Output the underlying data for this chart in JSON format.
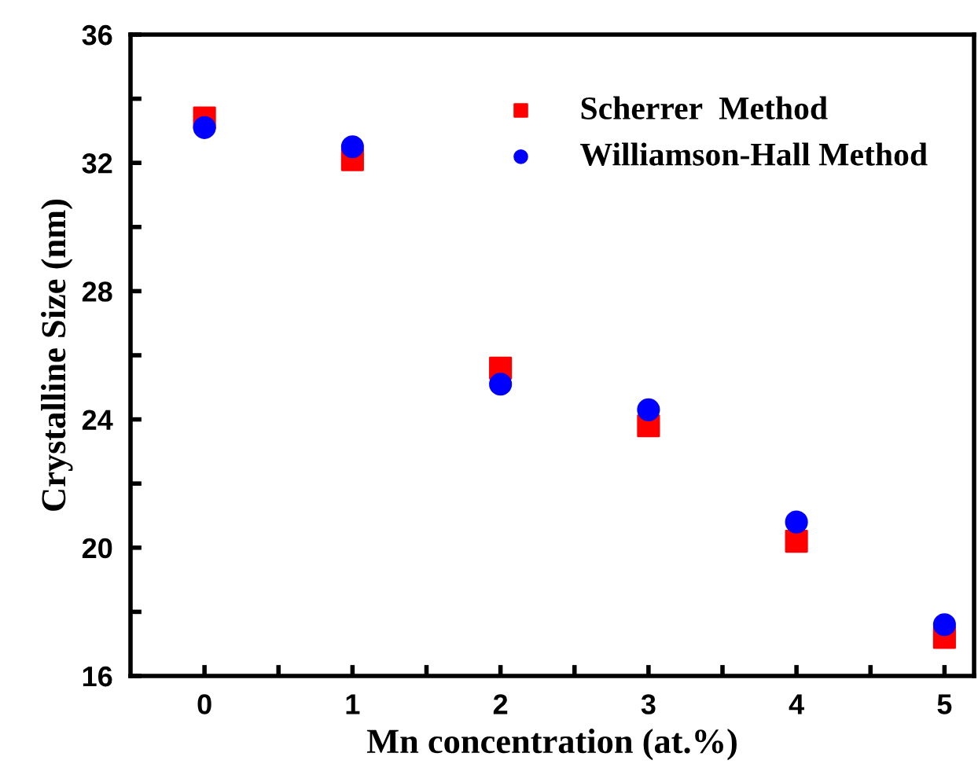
{
  "chart_data": {
    "type": "scatter",
    "xlabel": "Mn concentration (at.%)",
    "ylabel": "Crystalline Size (nm)",
    "x": [
      0,
      1,
      2,
      3,
      4,
      5
    ],
    "series": [
      {
        "name": "Scherrer  Method",
        "color": "#ff0000",
        "marker": "square",
        "values": [
          33.4,
          32.1,
          25.6,
          23.8,
          20.2,
          17.2
        ]
      },
      {
        "name": "Williamson-Hall Method",
        "color": "#0000ff",
        "marker": "circle",
        "values": [
          33.1,
          32.5,
          25.1,
          24.3,
          20.8,
          17.6
        ]
      }
    ],
    "xlim": [
      -0.5,
      5.2
    ],
    "xticks": [
      0,
      {
        "value": 0.5,
        "label": null
      },
      1,
      {
        "value": 1.5,
        "label": null
      },
      2,
      {
        "value": 2.5,
        "label": null
      },
      3,
      {
        "value": 3.5,
        "label": null
      },
      4,
      {
        "value": 4.5,
        "label": null
      },
      5
    ],
    "ylim": [
      16,
      36
    ],
    "yticks": [
      16,
      {
        "value": 18,
        "label": null
      },
      20,
      {
        "value": 22,
        "label": null
      },
      24,
      {
        "value": 26,
        "label": null
      },
      28,
      {
        "value": 30,
        "label": null
      },
      32,
      {
        "value": 34,
        "label": null
      },
      36
    ],
    "grid": false,
    "legend": "top right"
  }
}
